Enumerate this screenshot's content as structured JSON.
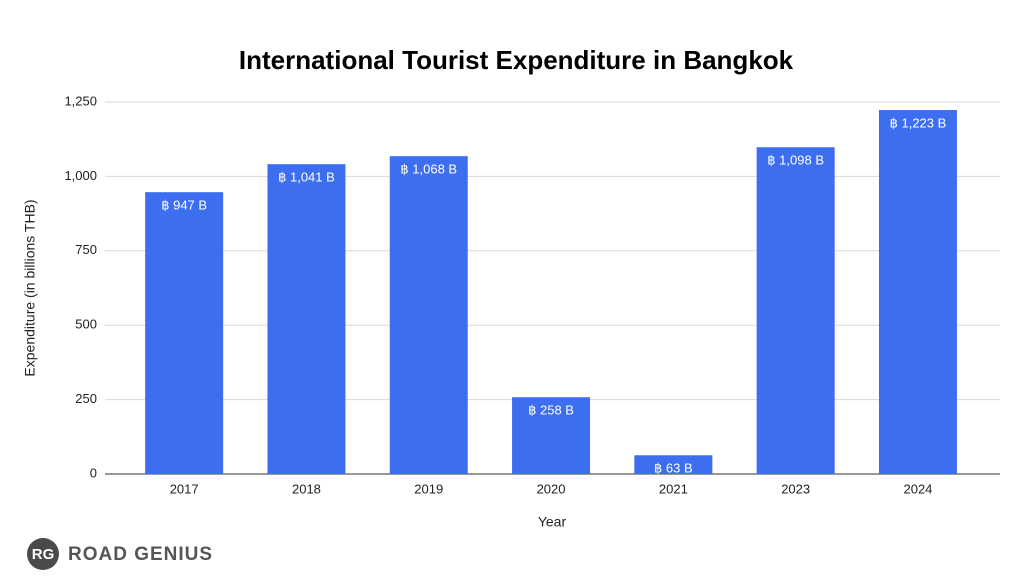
{
  "chart_data": {
    "type": "bar",
    "title": "International Tourist Expenditure in Bangkok",
    "x_label": "Year",
    "y_label": "Expenditure (in billions THB)",
    "categories": [
      "2017",
      "2018",
      "2019",
      "2020",
      "2021",
      "2023",
      "2024"
    ],
    "values": [
      947,
      1041,
      1068,
      258,
      63,
      1098,
      1223
    ],
    "value_labels": [
      "฿ 947 B",
      "฿ 1,041 B",
      "฿ 1,068 B",
      "฿ 258 B",
      "฿ 63 B",
      "฿ 1,098 B",
      "฿ 1,223 B"
    ],
    "color": "#3d6ef0",
    "ylim": [
      0,
      1250
    ],
    "yticks": [
      0,
      250,
      500,
      750,
      {
        "value": 1000,
        "label": "1,000"
      },
      {
        "value": 1250,
        "label": "1,250"
      }
    ],
    "grid": true
  },
  "branding": {
    "badge": "RG",
    "name": "ROAD GENIUS"
  }
}
